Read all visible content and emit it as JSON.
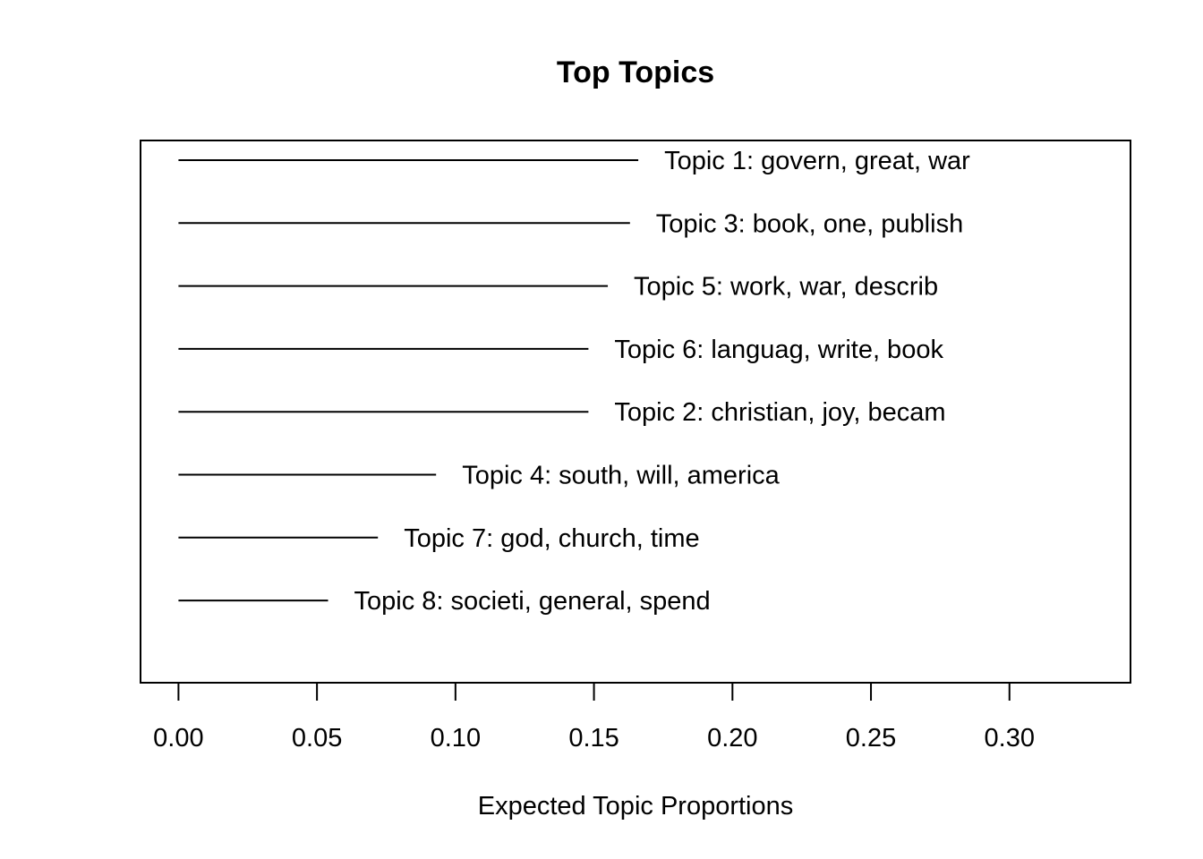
{
  "chart_data": {
    "type": "bar",
    "orientation": "horizontal",
    "title": "Top Topics",
    "xlabel": "Expected Topic Proportions",
    "ylabel": "",
    "xlim": [
      -0.0137,
      0.3437
    ],
    "xticks": [
      0.0,
      0.05,
      0.1,
      0.15,
      0.2,
      0.25,
      0.3
    ],
    "xtick_labels": [
      "0.00",
      "0.05",
      "0.10",
      "0.15",
      "0.20",
      "0.25",
      "0.30"
    ],
    "categories": [
      "Topic 1: govern, great, war",
      "Topic 3: book, one, publish",
      "Topic 5: work, war, describ",
      "Topic 6: languag, write, book",
      "Topic 2: christian, joy, becam",
      "Topic 4: south, will, america",
      "Topic 7: god, church, time",
      "Topic 8: societi, general, spend"
    ],
    "values": [
      0.166,
      0.163,
      0.155,
      0.148,
      0.148,
      0.093,
      0.072,
      0.054
    ],
    "grid": false,
    "legend": "none"
  }
}
